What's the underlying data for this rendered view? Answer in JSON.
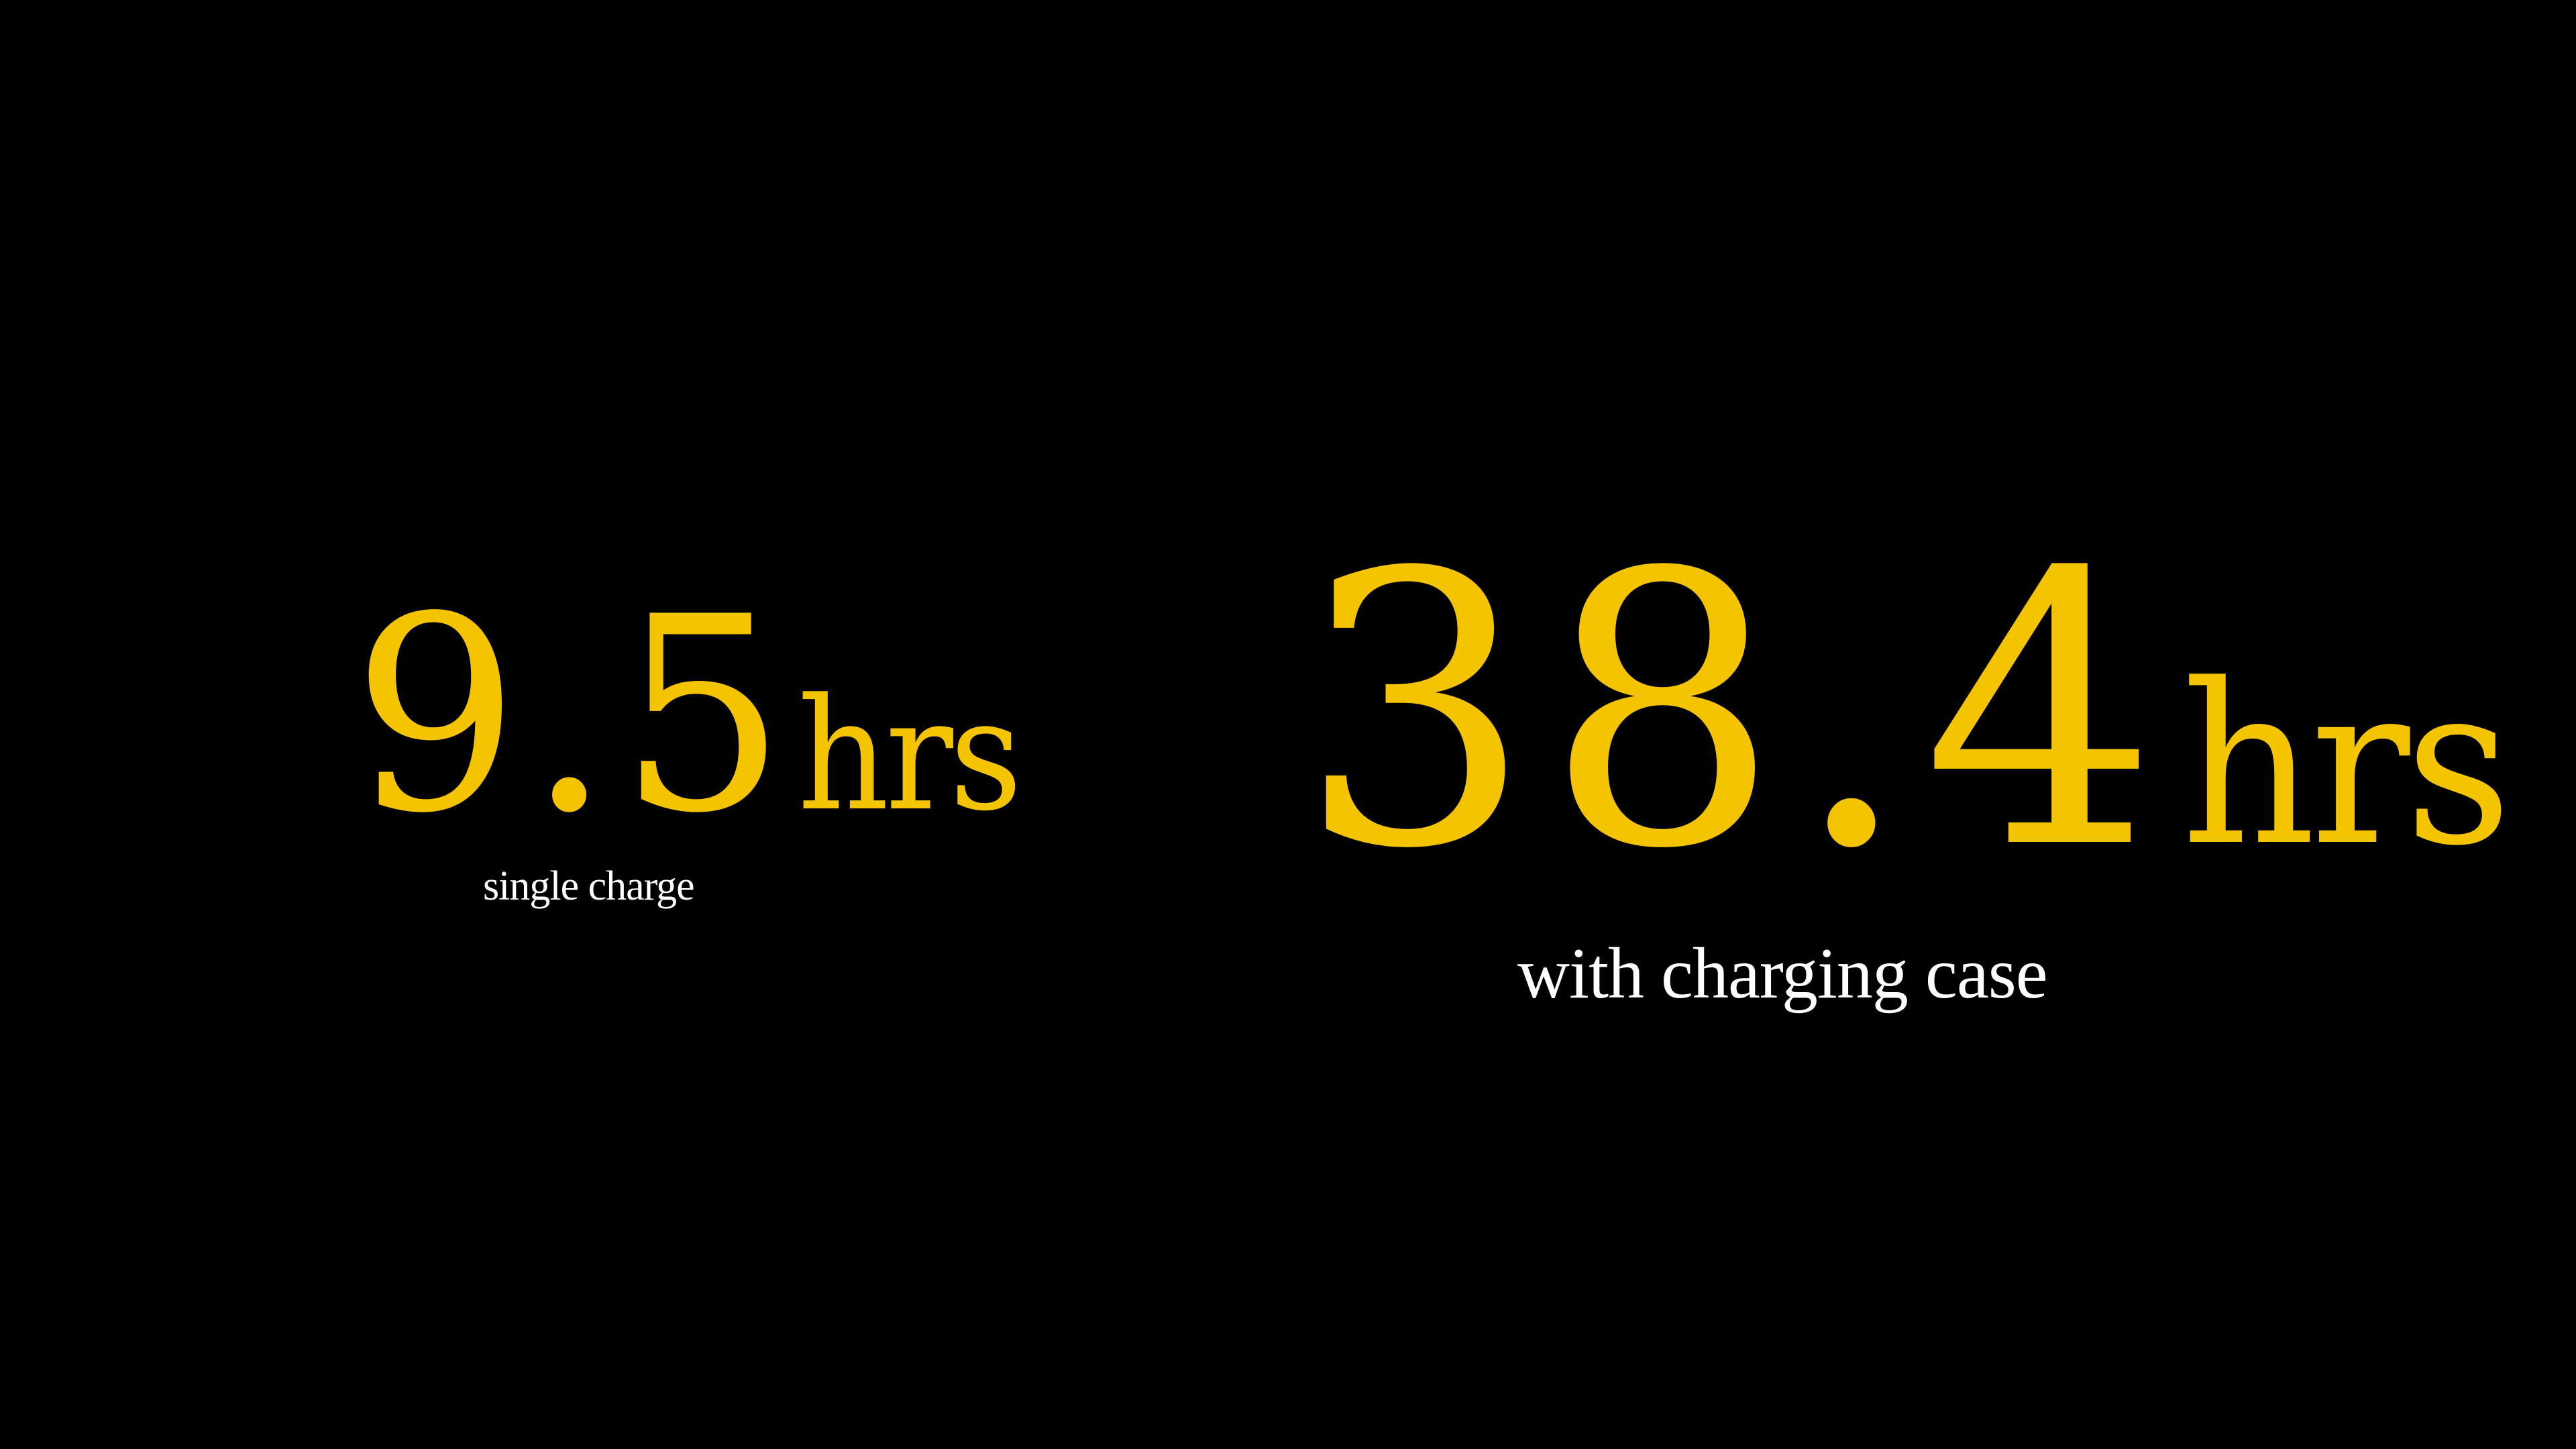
{
  "colors": {
    "background": "#000000",
    "value": "#F5C400",
    "caption": "#FFFFFF"
  },
  "stats": [
    {
      "value": "9.5",
      "unit": "hrs",
      "caption": "single charge"
    },
    {
      "value": "38.4",
      "unit": "hrs",
      "caption": "with charging case"
    }
  ]
}
